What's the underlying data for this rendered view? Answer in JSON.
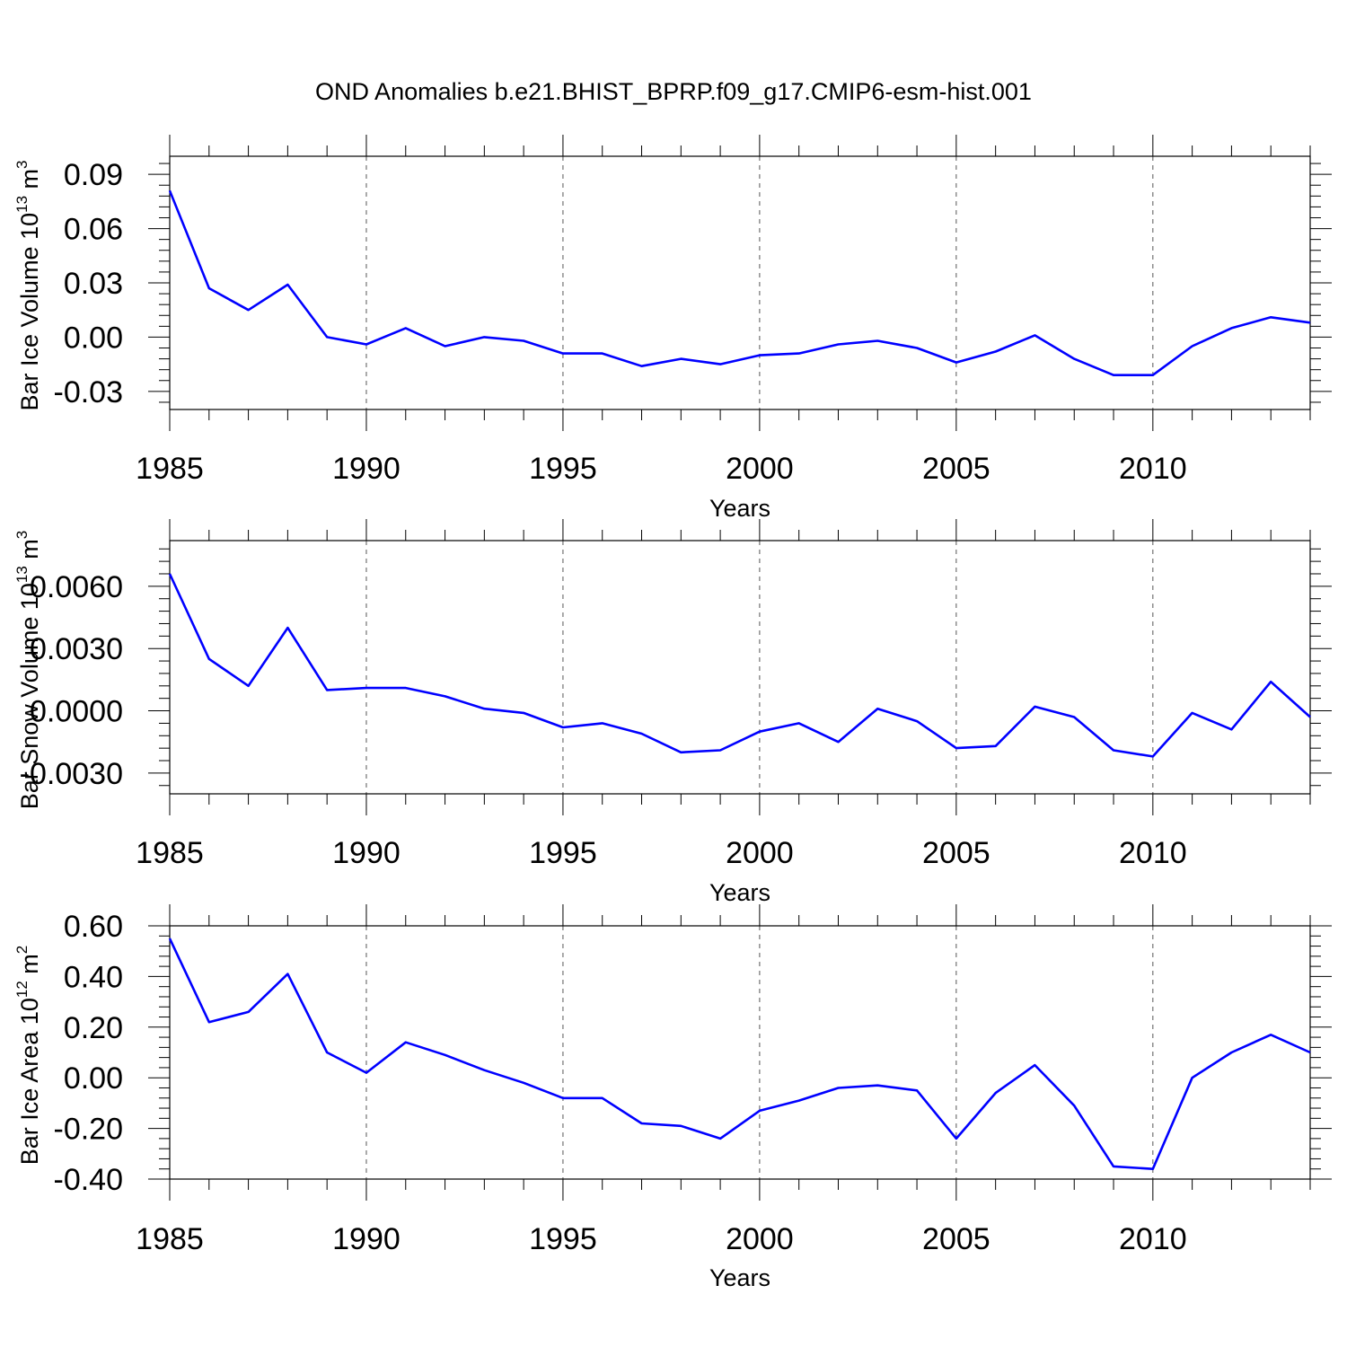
{
  "title": "OND Anomalies b.e21.BHIST_BPRP.f09_g17.CMIP6-esm-hist.001",
  "colors": {
    "line": "#0000ff",
    "axis": "#000000",
    "grid": "#555555"
  },
  "chart_data": [
    {
      "type": "line",
      "name": "ice-volume",
      "ylabel_main": "Bar Ice Volume 10",
      "ylabel_exp": "13",
      "ylabel_unit": " m",
      "ylabel_unit_exp": "3",
      "xlabel": "Years",
      "xlim": [
        1985,
        2014
      ],
      "ylim": [
        -0.04,
        0.1
      ],
      "x_ticks": [
        1985,
        1990,
        1995,
        2000,
        2005,
        2010
      ],
      "y_ticks": [
        0.09,
        0.06,
        0.03,
        0.0,
        -0.03
      ],
      "y_tick_labels": [
        "0.09",
        "0.06",
        "0.03",
        "0.00",
        "-0.03"
      ],
      "x": [
        1985,
        1986,
        1987,
        1988,
        1989,
        1990,
        1991,
        1992,
        1993,
        1994,
        1995,
        1996,
        1997,
        1998,
        1999,
        2000,
        2001,
        2002,
        2003,
        2004,
        2005,
        2006,
        2007,
        2008,
        2009,
        2010,
        2011,
        2012,
        2013,
        2014
      ],
      "values": [
        0.081,
        0.027,
        0.015,
        0.029,
        0.0,
        -0.004,
        0.005,
        -0.005,
        0.0,
        -0.002,
        -0.009,
        -0.009,
        -0.016,
        -0.012,
        -0.015,
        -0.01,
        -0.009,
        -0.004,
        -0.002,
        -0.006,
        -0.014,
        -0.008,
        0.001,
        -0.012,
        -0.021,
        -0.021,
        -0.005,
        0.005,
        0.011,
        0.008
      ]
    },
    {
      "type": "line",
      "name": "snow-volume",
      "ylabel_main": "Bar Snow Volume 10",
      "ylabel_exp": "13",
      "ylabel_unit": " m",
      "ylabel_unit_exp": "3",
      "xlabel": "Years",
      "xlim": [
        1985,
        2014
      ],
      "ylim": [
        -0.004,
        0.0082
      ],
      "x_ticks": [
        1985,
        1990,
        1995,
        2000,
        2005,
        2010
      ],
      "y_ticks": [
        0.006,
        0.003,
        0.0,
        -0.003
      ],
      "y_tick_labels": [
        "0.0060",
        "0.0030",
        "0.0000",
        "-0.0030"
      ],
      "x": [
        1985,
        1986,
        1987,
        1988,
        1989,
        1990,
        1991,
        1992,
        1993,
        1994,
        1995,
        1996,
        1997,
        1998,
        1999,
        2000,
        2001,
        2002,
        2003,
        2004,
        2005,
        2006,
        2007,
        2008,
        2009,
        2010,
        2011,
        2012,
        2013,
        2014
      ],
      "values": [
        0.0066,
        0.0025,
        0.0012,
        0.004,
        0.001,
        0.0011,
        0.0011,
        0.0007,
        0.0001,
        -0.0001,
        -0.0008,
        -0.0006,
        -0.0011,
        -0.002,
        -0.0019,
        -0.001,
        -0.0006,
        -0.0015,
        0.0001,
        -0.0005,
        -0.0018,
        -0.0017,
        0.0002,
        -0.0003,
        -0.0019,
        -0.0022,
        -0.0001,
        -0.0009,
        0.0014,
        -0.0003
      ]
    },
    {
      "type": "line",
      "name": "ice-area",
      "ylabel_main": "Bar Ice Area 10",
      "ylabel_exp": "12",
      "ylabel_unit": " m",
      "ylabel_unit_exp": "2",
      "xlabel": "Years",
      "xlim": [
        1985,
        2014
      ],
      "ylim": [
        -0.4,
        0.6
      ],
      "x_ticks": [
        1985,
        1990,
        1995,
        2000,
        2005,
        2010
      ],
      "y_ticks": [
        0.6,
        0.4,
        0.2,
        0.0,
        -0.2,
        -0.4
      ],
      "y_tick_labels": [
        "0.60",
        "0.40",
        "0.20",
        "0.00",
        "-0.20",
        "-0.40"
      ],
      "x": [
        1985,
        1986,
        1987,
        1988,
        1989,
        1990,
        1991,
        1992,
        1993,
        1994,
        1995,
        1996,
        1997,
        1998,
        1999,
        2000,
        2001,
        2002,
        2003,
        2004,
        2005,
        2006,
        2007,
        2008,
        2009,
        2010,
        2011,
        2012,
        2013,
        2014
      ],
      "values": [
        0.55,
        0.22,
        0.26,
        0.41,
        0.1,
        0.02,
        0.14,
        0.09,
        0.03,
        -0.02,
        -0.08,
        -0.08,
        -0.18,
        -0.19,
        -0.24,
        -0.13,
        -0.09,
        -0.04,
        -0.03,
        -0.05,
        -0.24,
        -0.06,
        0.05,
        -0.11,
        -0.35,
        -0.36,
        0.0,
        0.1,
        0.17,
        0.1
      ]
    }
  ]
}
